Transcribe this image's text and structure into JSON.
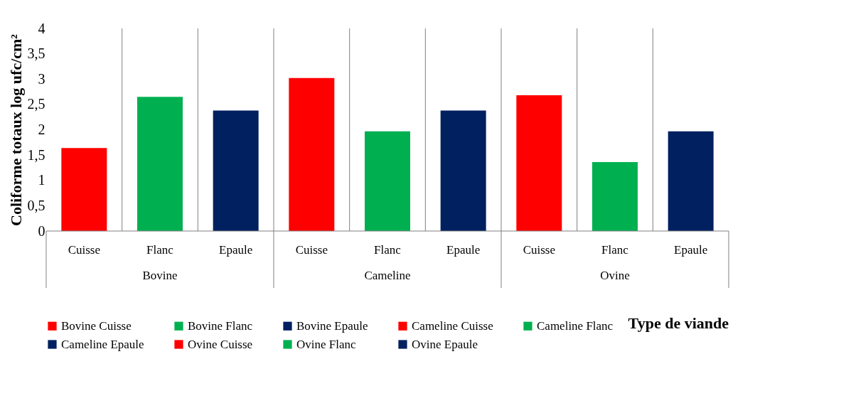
{
  "chart_data": {
    "type": "bar",
    "ylabel": "Coliforme totaux log ufc/cm²",
    "xlabel": "Type de viande",
    "categories": [
      "Cuisse",
      "Flanc",
      "Epaule",
      "Cuisse",
      "Flanc",
      "Epaule",
      "Cuisse",
      "Flanc",
      "Epaule"
    ],
    "annotations": [
      "Bovine",
      "Cameline",
      "Ovine"
    ],
    "series": [
      {
        "name": "Bovine Cuisse",
        "color": "#ff0000",
        "values": [
          1.64,
          null,
          null,
          null,
          null,
          null,
          null,
          null,
          null
        ]
      },
      {
        "name": "Bovine Flanc",
        "color": "#00b050",
        "values": [
          null,
          2.65,
          null,
          null,
          null,
          null,
          null,
          null,
          null
        ]
      },
      {
        "name": "Bovine Epaule",
        "color": "#002060",
        "values": [
          null,
          null,
          2.38,
          null,
          null,
          null,
          null,
          null,
          null
        ]
      },
      {
        "name": "Cameline Cuisse",
        "color": "#ff0000",
        "values": [
          null,
          null,
          null,
          3.02,
          null,
          null,
          null,
          null,
          null
        ]
      },
      {
        "name": "Cameline Flanc",
        "color": "#00b050",
        "values": [
          null,
          null,
          null,
          null,
          1.97,
          null,
          null,
          null,
          null
        ]
      },
      {
        "name": "Cameline Epaule",
        "color": "#002060",
        "values": [
          null,
          null,
          null,
          null,
          null,
          2.38,
          null,
          null,
          null
        ]
      },
      {
        "name": "Ovine Cuisse",
        "color": "#ff0000",
        "values": [
          null,
          null,
          null,
          null,
          null,
          null,
          2.68,
          null,
          null
        ]
      },
      {
        "name": "Ovine Flanc",
        "color": "#00b050",
        "values": [
          null,
          null,
          null,
          null,
          null,
          null,
          null,
          1.36,
          null
        ]
      },
      {
        "name": "Ovine Epaule",
        "color": "#002060",
        "values": [
          null,
          null,
          null,
          null,
          null,
          null,
          null,
          null,
          1.97
        ]
      }
    ],
    "ylim": [
      0,
      4
    ],
    "yticks": [
      0,
      {
        "value": 0.5,
        "label": "0,5"
      },
      1,
      {
        "value": 1.5,
        "label": "1,5"
      },
      2,
      {
        "value": 2.5,
        "label": "2,5"
      },
      3,
      {
        "value": 3.5,
        "label": "3,5"
      },
      4
    ],
    "grid": "x",
    "legend": "bottom"
  }
}
